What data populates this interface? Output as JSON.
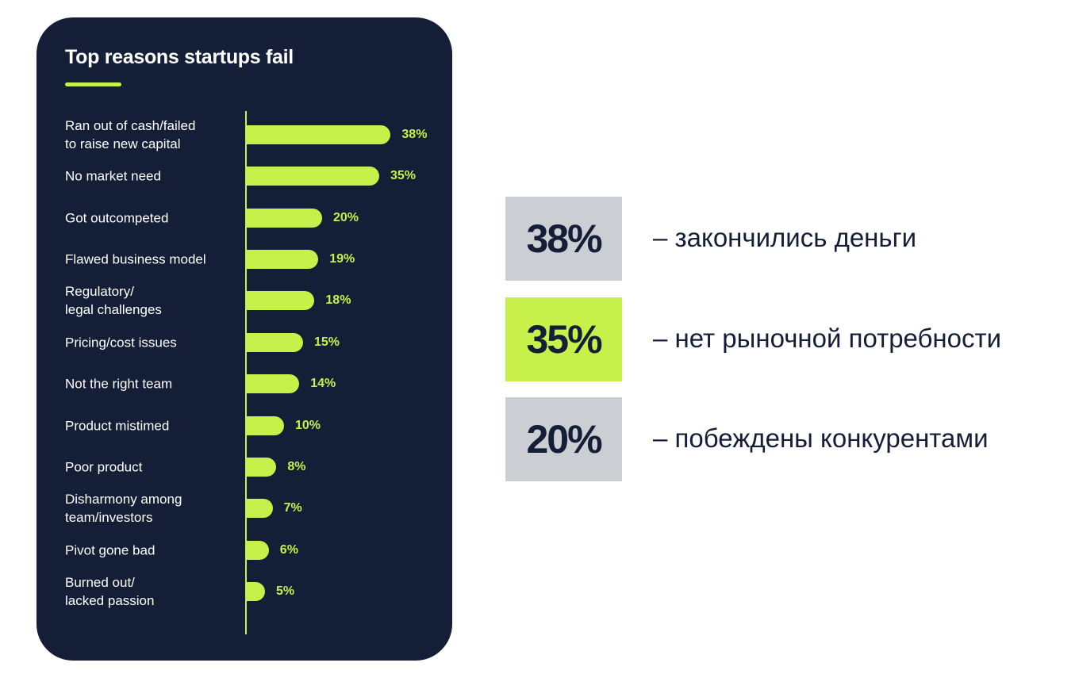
{
  "chart_data": {
    "type": "bar",
    "orientation": "horizontal",
    "title": "Top reasons startups fail",
    "categories": [
      "Ran out of cash/failed\nto raise new capital",
      "No market need",
      "Got outcompeted",
      "Flawed business model",
      "Regulatory/\nlegal challenges",
      "Pricing/cost issues",
      "Not the right team",
      "Product mistimed",
      "Poor product",
      "Disharmony among\nteam/investors",
      "Pivot gone bad",
      "Burned out/\nlacked passion"
    ],
    "values": [
      38,
      35,
      20,
      19,
      18,
      15,
      14,
      10,
      8,
      7,
      6,
      5
    ],
    "value_labels": [
      "38%",
      "35%",
      "20%",
      "19%",
      "18%",
      "15%",
      "14%",
      "10%",
      "8%",
      "7%",
      "6%",
      "5%"
    ],
    "unit": "%",
    "xlim": [
      0,
      40
    ],
    "grid": false,
    "bar_color": "#c8f04a",
    "background": "#141e36"
  },
  "highlights": [
    {
      "value": "38%",
      "text": "– закончились деньги",
      "color": "#cbced3"
    },
    {
      "value": "35%",
      "text": "– нет рыночной потребности",
      "color": "#c8f04a"
    },
    {
      "value": "20%",
      "text": "– побеждены конкурентами",
      "color": "#cbced3"
    }
  ]
}
